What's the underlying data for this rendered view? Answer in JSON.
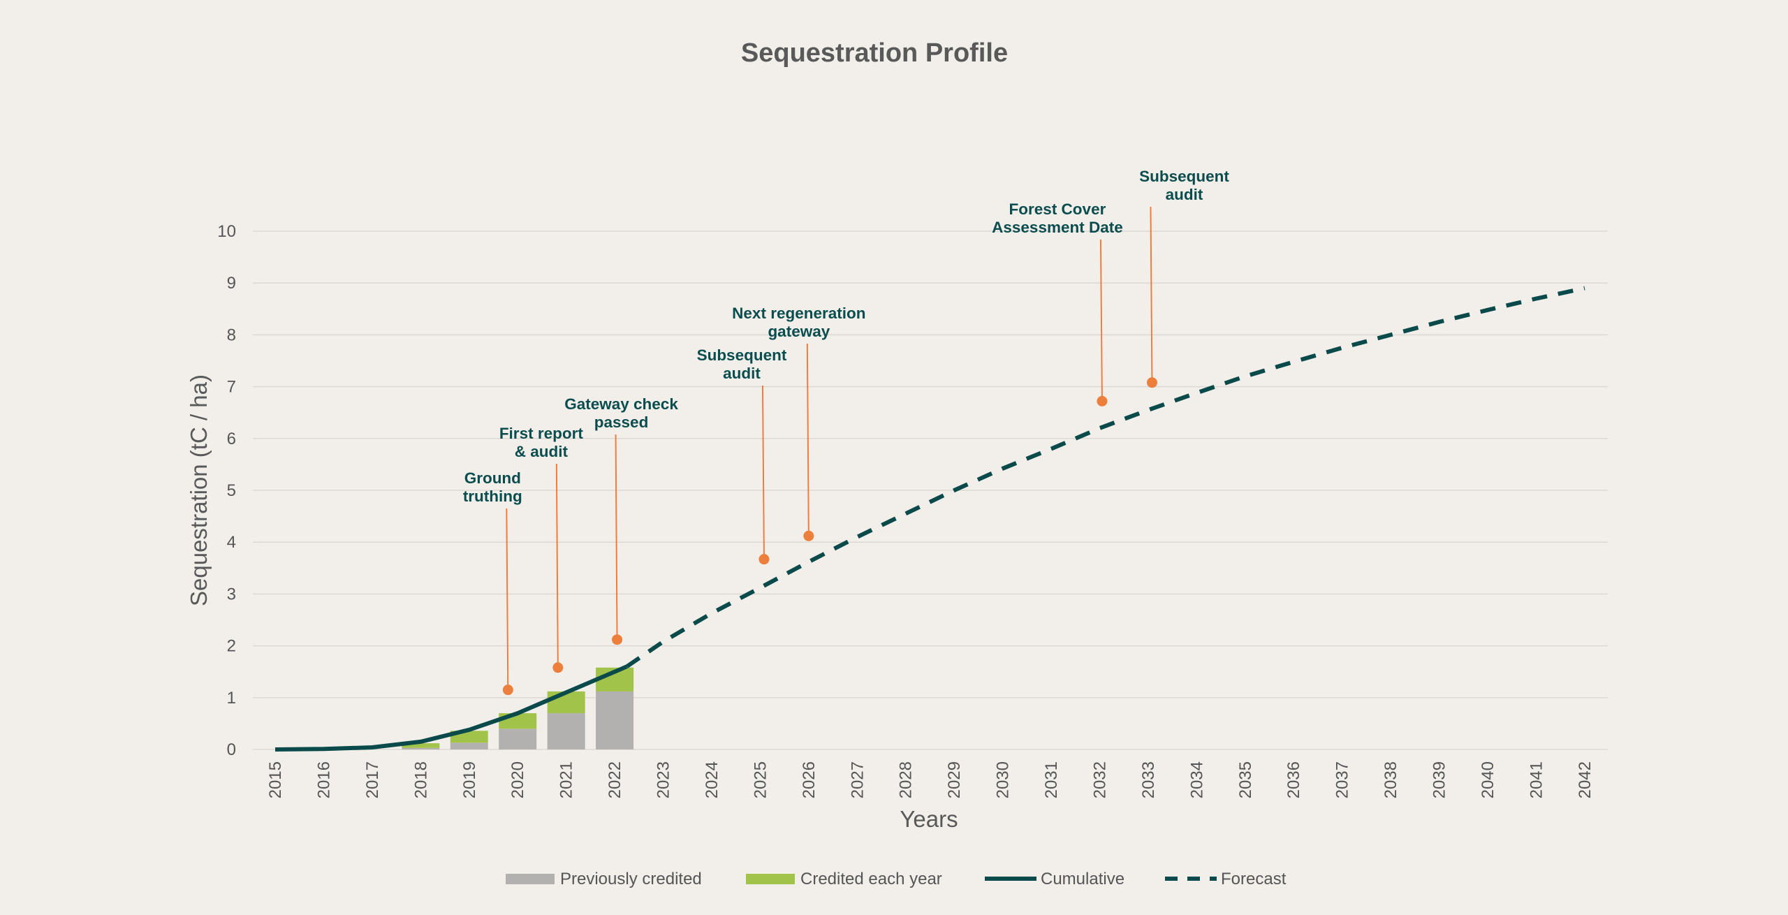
{
  "colors": {
    "background": "#f2efea",
    "previously_credited": "#b3b1af",
    "credited_each_year": "#a2c34a",
    "cumulative": "#0b4a4b",
    "annotation_marker": "#ec7f3c",
    "annotation_text": "#0b4d4e",
    "gridline": "#dcd8d3",
    "text": "#595959"
  },
  "chart_data": {
    "type": "bar",
    "title": "Sequestration Profile",
    "xlabel": "Years",
    "ylabel": "Sequestration (tC / ha)",
    "ylim": [
      0,
      10
    ],
    "yticks": [
      0,
      1,
      2,
      3,
      4,
      5,
      6,
      7,
      8,
      9,
      10
    ],
    "grid": true,
    "legend_position": "bottom",
    "categories": [
      "2015",
      "2016",
      "2017",
      "2018",
      "2019",
      "2020",
      "2021",
      "2022",
      "2023",
      "2024",
      "2025",
      "2026",
      "2027",
      "2028",
      "2029",
      "2030",
      "2031",
      "2032",
      "2033",
      "2034",
      "2035",
      "2036",
      "2037",
      "2038",
      "2039",
      "2040",
      "2041",
      "2042"
    ],
    "bars": [
      {
        "name": "Previously credited",
        "x": [
          "2018",
          "2019",
          "2020",
          "2021",
          "2022"
        ],
        "values": [
          0.03,
          0.13,
          0.4,
          0.7,
          1.12
        ]
      },
      {
        "name": "Credited each year",
        "x": [
          "2018",
          "2019",
          "2020",
          "2021",
          "2022"
        ],
        "values": [
          0.09,
          0.23,
          0.3,
          0.42,
          0.46
        ]
      }
    ],
    "lines": [
      {
        "name": "Cumulative",
        "style": "solid",
        "x": [
          2015,
          2016,
          2017,
          2018,
          2019,
          2020,
          2021,
          2022.25
        ],
        "values": [
          0,
          0.01,
          0.04,
          0.15,
          0.38,
          0.7,
          1.1,
          1.6
        ]
      },
      {
        "name": "Forecast",
        "style": "dashed",
        "x": [
          2022.25,
          2023,
          2024,
          2025,
          2026,
          2027,
          2028,
          2029,
          2030,
          2031,
          2032,
          2033,
          2034,
          2035,
          2036,
          2037,
          2038,
          2039,
          2040,
          2041,
          2042
        ],
        "values": [
          1.6,
          2.08,
          2.63,
          3.12,
          3.62,
          4.1,
          4.55,
          5.0,
          5.42,
          5.8,
          6.2,
          6.55,
          6.88,
          7.2,
          7.48,
          7.75,
          8.0,
          8.25,
          8.48,
          8.7,
          8.9
        ]
      }
    ],
    "annotations": [
      {
        "lines": [
          "Ground",
          "truthing"
        ],
        "x": 2019.8,
        "y": 1.15
      },
      {
        "lines": [
          "First report",
          "& audit"
        ],
        "x": 2020.83,
        "y": 1.58
      },
      {
        "lines": [
          "Gateway check",
          "passed"
        ],
        "x": 2022.05,
        "y": 2.12
      },
      {
        "lines": [
          "Subsequent",
          "audit"
        ],
        "x": 2025.08,
        "y": 3.67
      },
      {
        "lines": [
          "Next regeneration",
          "gateway"
        ],
        "x": 2026.0,
        "y": 4.12
      },
      {
        "lines": [
          "Forest Cover",
          "Assessment Date"
        ],
        "x": 2032.05,
        "y": 6.72
      },
      {
        "lines": [
          "Subsequent",
          "audit"
        ],
        "x": 2033.08,
        "y": 7.08
      }
    ]
  }
}
